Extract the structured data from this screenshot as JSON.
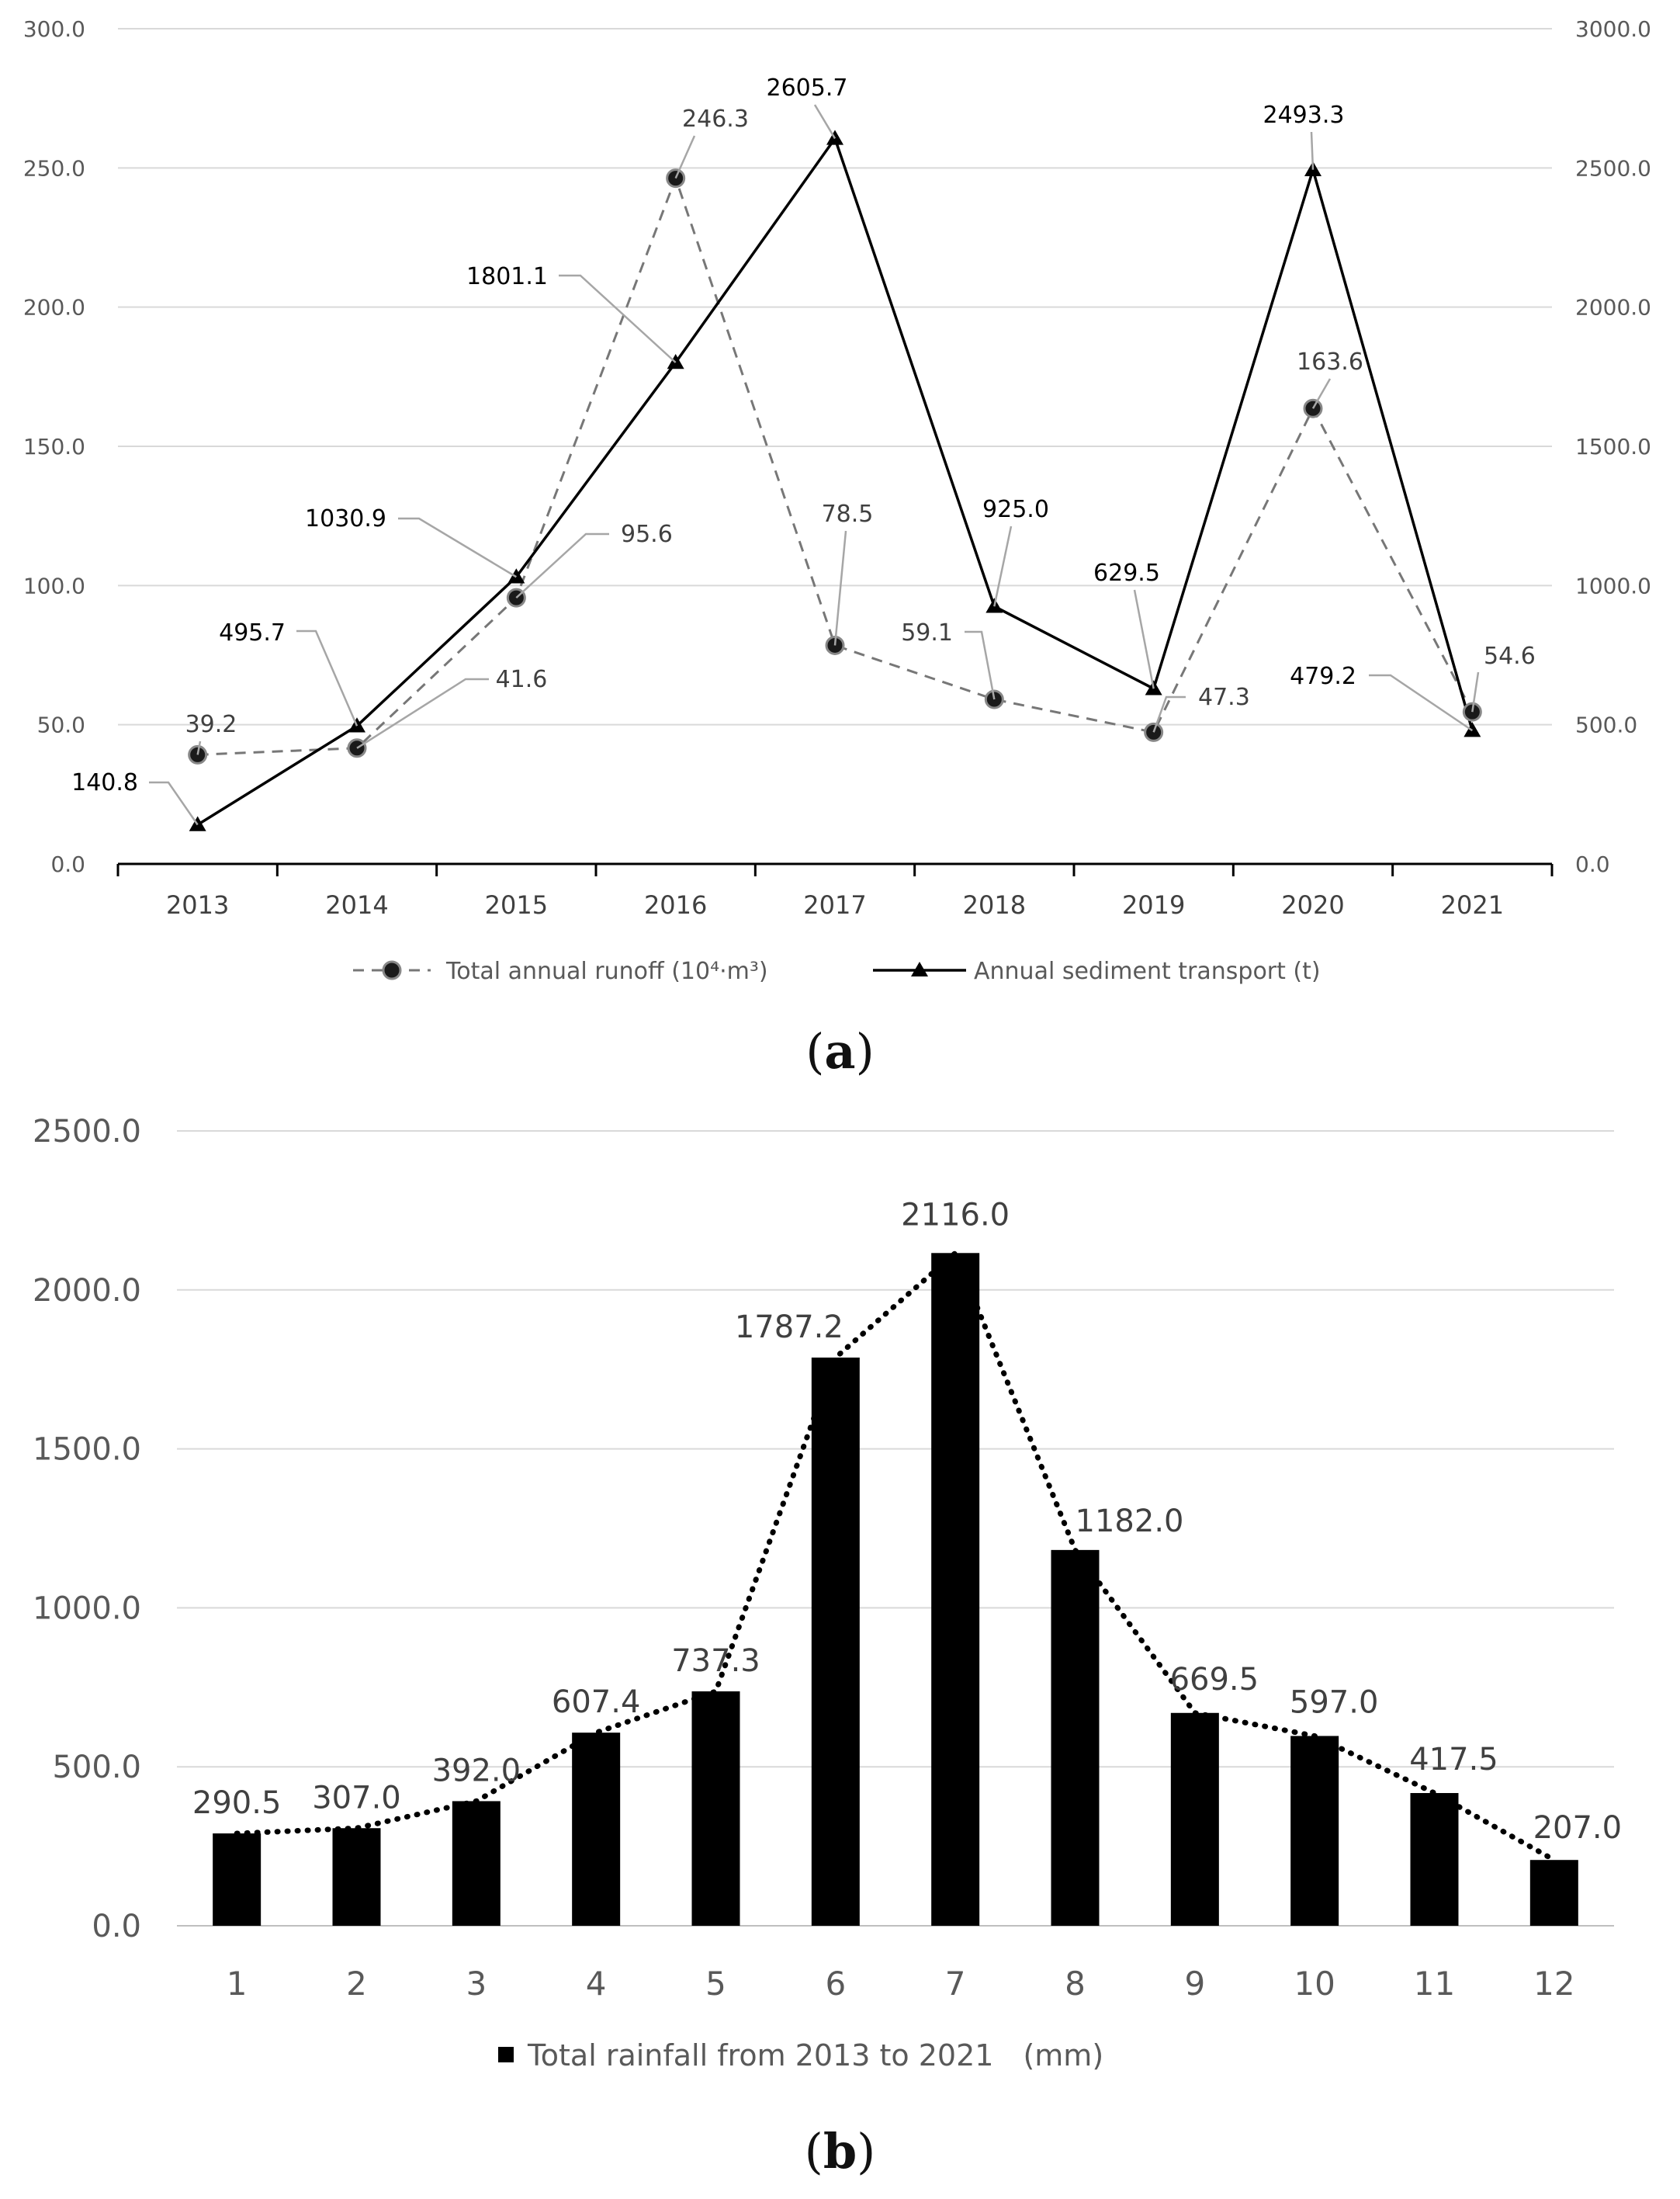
{
  "panels": {
    "a": {
      "label_open": "(",
      "label_letter": "a",
      "label_close": ")"
    },
    "b": {
      "label_open": "(",
      "label_letter": "b",
      "label_close": ")"
    }
  },
  "chart_data": [
    {
      "type": "line",
      "categories": [
        "2013",
        "2014",
        "2015",
        "2016",
        "2017",
        "2018",
        "2019",
        "2020",
        "2021"
      ],
      "y_left": {
        "ylim": [
          0,
          300
        ],
        "ticks": [
          "0.0",
          "50.0",
          "100.0",
          "150.0",
          "200.0",
          "250.0",
          "300.0"
        ]
      },
      "y_right": {
        "ylim": [
          0,
          3000
        ],
        "ticks": [
          "0.0",
          "500.0",
          "1000.0",
          "1500.0",
          "2000.0",
          "2500.0",
          "3000.0"
        ]
      },
      "grid": "horizontal",
      "legend": "bottom-center",
      "series": [
        {
          "name": "Total annual runoff (10⁴·m³)",
          "axis": "left",
          "style": "dashed",
          "marker": "circle",
          "color": "#777777",
          "values": [
            39.2,
            41.6,
            95.6,
            246.3,
            78.5,
            59.1,
            47.3,
            163.6,
            54.6
          ],
          "labels": [
            "39.2",
            "41.6",
            "95.6",
            "246.3",
            "78.5",
            "59.1",
            "47.3",
            "163.6",
            "54.6"
          ]
        },
        {
          "name": "Annual sediment transport (t)",
          "axis": "right",
          "style": "solid",
          "marker": "triangle",
          "color": "#000000",
          "values": [
            140.8,
            495.7,
            1030.9,
            1801.1,
            2605.7,
            925.0,
            629.5,
            2493.3,
            479.2
          ],
          "labels": [
            "140.8",
            "495.7",
            "1030.9",
            "1801.1",
            "2605.7",
            "925.0",
            "629.5",
            "2493.3",
            "479.2"
          ]
        }
      ]
    },
    {
      "type": "bar",
      "categories": [
        "1",
        "2",
        "3",
        "4",
        "5",
        "6",
        "7",
        "8",
        "9",
        "10",
        "11",
        "12"
      ],
      "ylim": [
        0,
        2500
      ],
      "ticks": [
        "0.0",
        "500.0",
        "1000.0",
        "1500.0",
        "2000.0",
        "2500.0"
      ],
      "grid": "horizontal",
      "legend": "bottom-center",
      "trendline": "dotted",
      "series": [
        {
          "name": "Total rainfall from 2013 to 2021　(mm)",
          "color": "#000000",
          "values": [
            290.5,
            307.0,
            392.0,
            607.4,
            737.3,
            1787.2,
            2116.0,
            1182.0,
            669.5,
            597.0,
            417.5,
            207.0
          ],
          "labels": [
            "290.5",
            "307.0",
            "392.0",
            "607.4",
            "737.3",
            "1787.2",
            "2116.0",
            "1182.0",
            "669.5",
            "597.0",
            "417.5",
            "207.0"
          ]
        }
      ]
    }
  ]
}
